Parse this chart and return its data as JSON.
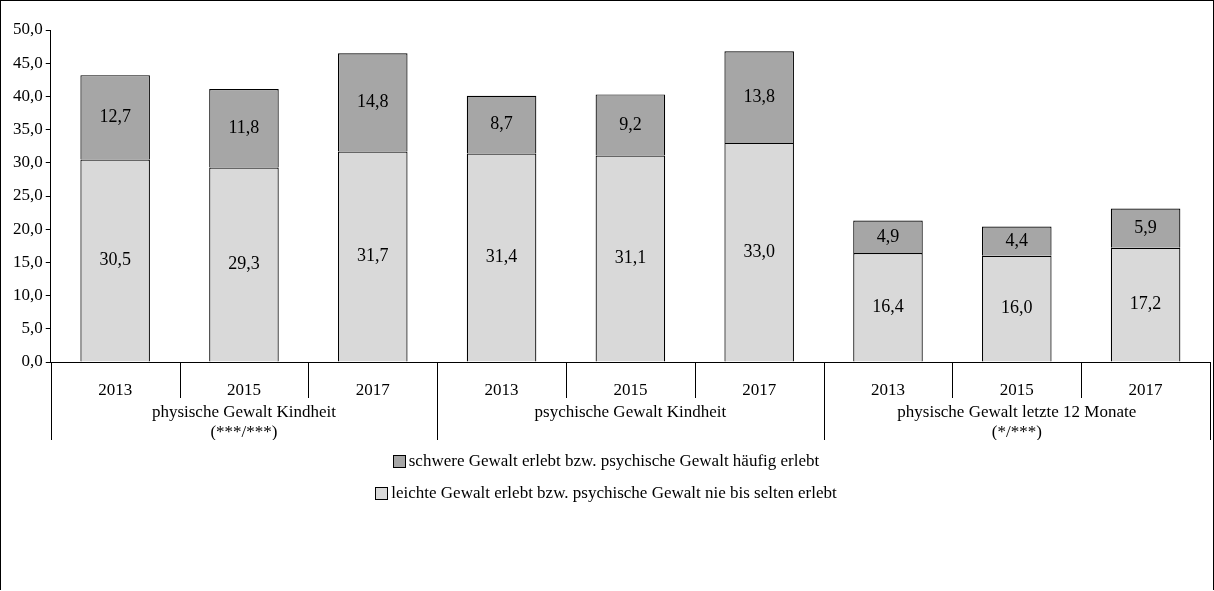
{
  "chart_data": {
    "type": "bar",
    "stacked": true,
    "categories": [
      "2013",
      "2015",
      "2017",
      "2013",
      "2015",
      "2017",
      "2013",
      "2015",
      "2017"
    ],
    "annotations": [
      "physische Gewalt Kindheit\n(***/***)",
      "psychische Gewalt Kindheit",
      "physische Gewalt letzte 12 Monate\n(*/***)"
    ],
    "series": [
      {
        "name": "leichte Gewalt erlebt bzw. psychische Gewalt nie bis selten erlebt",
        "color": "#d9d9d9",
        "values": [
          30.5,
          29.3,
          31.7,
          31.4,
          31.1,
          33.0,
          16.4,
          16.0,
          17.2
        ],
        "value_labels": [
          "30,5",
          "29,3",
          "31,7",
          "31,4",
          "31,1",
          "33,0",
          "16,4",
          "16,0",
          "17,2"
        ]
      },
      {
        "name": "schwere Gewalt erlebt bzw. psychische Gewalt häufig erlebt",
        "color": "#a6a6a6",
        "values": [
          12.7,
          11.8,
          14.8,
          8.7,
          9.2,
          13.8,
          4.9,
          4.4,
          5.9
        ],
        "value_labels": [
          "12,7",
          "11,8",
          "14,8",
          "8,7",
          "9,2",
          "13,8",
          "4,9",
          "4,4",
          "5,9"
        ]
      }
    ],
    "ylim": [
      0,
      50
    ],
    "yticks": [
      {
        "value": 0,
        "label": "0,0"
      },
      {
        "value": 5,
        "label": "5,0"
      },
      {
        "value": 10,
        "label": "10,0"
      },
      {
        "value": 15,
        "label": "15,0"
      },
      {
        "value": 20,
        "label": "20,0"
      },
      {
        "value": 25,
        "label": "25,0"
      },
      {
        "value": 30,
        "label": "30,0"
      },
      {
        "value": 35,
        "label": "35,0"
      },
      {
        "value": 40,
        "label": "40,0"
      },
      {
        "value": 45,
        "label": "45,0"
      },
      {
        "value": 50,
        "label": "50,0"
      }
    ],
    "grid": false,
    "legend": "bottom"
  }
}
